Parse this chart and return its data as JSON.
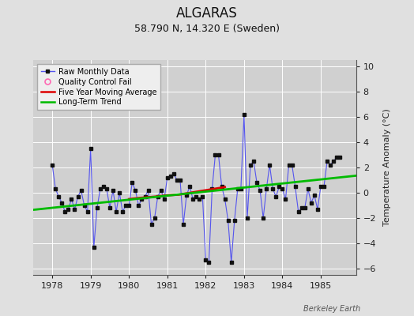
{
  "title": "ALGARAS",
  "subtitle": "58.790 N, 14.320 E (Sweden)",
  "ylabel": "Temperature Anomaly (°C)",
  "xlabel_note": "Berkeley Earth",
  "xlim": [
    1977.5,
    1985.92
  ],
  "ylim": [
    -6.5,
    10.5
  ],
  "yticks": [
    -6,
    -4,
    -2,
    0,
    2,
    4,
    6,
    8,
    10
  ],
  "xticks": [
    1978,
    1979,
    1980,
    1981,
    1982,
    1983,
    1984,
    1985
  ],
  "background_color": "#e0e0e0",
  "plot_bg_color": "#d0d0d0",
  "grid_color": "#ffffff",
  "raw_color": "#5555ee",
  "marker_color": "#111111",
  "moving_avg_color": "#dd0000",
  "trend_color": "#00bb00",
  "raw_monthly_x": [
    1978.0,
    1978.083,
    1978.167,
    1978.25,
    1978.333,
    1978.417,
    1978.5,
    1978.583,
    1978.667,
    1978.75,
    1978.833,
    1978.917,
    1979.0,
    1979.083,
    1979.167,
    1979.25,
    1979.333,
    1979.417,
    1979.5,
    1979.583,
    1979.667,
    1979.75,
    1979.833,
    1979.917,
    1980.0,
    1980.083,
    1980.167,
    1980.25,
    1980.333,
    1980.417,
    1980.5,
    1980.583,
    1980.667,
    1980.75,
    1980.833,
    1980.917,
    1981.0,
    1981.083,
    1981.167,
    1981.25,
    1981.333,
    1981.417,
    1981.5,
    1981.583,
    1981.667,
    1981.75,
    1981.833,
    1981.917,
    1982.0,
    1982.083,
    1982.167,
    1982.25,
    1982.333,
    1982.417,
    1982.5,
    1982.583,
    1982.667,
    1982.75,
    1982.833,
    1982.917,
    1983.0,
    1983.083,
    1983.167,
    1983.25,
    1983.333,
    1983.417,
    1983.5,
    1983.583,
    1983.667,
    1983.75,
    1983.833,
    1983.917,
    1984.0,
    1984.083,
    1984.167,
    1984.25,
    1984.333,
    1984.417,
    1984.5,
    1984.583,
    1984.667,
    1984.75,
    1984.833,
    1984.917,
    1985.0,
    1985.083,
    1985.167,
    1985.25,
    1985.333,
    1985.417,
    1985.5
  ],
  "raw_monthly_y": [
    2.2,
    0.3,
    -0.3,
    -0.8,
    -1.5,
    -1.3,
    -0.5,
    -1.3,
    -0.3,
    0.2,
    -1.0,
    -1.5,
    3.5,
    -4.3,
    -1.2,
    0.3,
    0.5,
    0.3,
    -1.2,
    0.2,
    -1.5,
    0.0,
    -1.5,
    -1.0,
    -1.0,
    0.8,
    0.2,
    -1.0,
    -0.5,
    -0.3,
    0.2,
    -2.5,
    -2.0,
    -0.3,
    0.2,
    -0.5,
    1.2,
    1.3,
    1.5,
    1.0,
    1.0,
    -2.5,
    -0.2,
    0.5,
    -0.5,
    -0.3,
    -0.5,
    -0.3,
    -5.3,
    -5.5,
    0.3,
    3.0,
    3.0,
    0.5,
    -0.5,
    -2.2,
    -5.5,
    -2.2,
    0.3,
    0.3,
    6.2,
    -2.0,
    2.2,
    2.5,
    0.8,
    0.2,
    -2.0,
    0.3,
    2.2,
    0.3,
    -0.3,
    0.5,
    0.3,
    -0.5,
    2.2,
    2.2,
    0.5,
    -1.5,
    -1.2,
    -1.2,
    0.3,
    -0.8,
    -0.2,
    -1.3,
    0.5,
    0.5,
    2.5,
    2.2,
    2.5,
    2.8,
    2.8
  ],
  "moving_avg_x": [
    1980.0,
    1980.3,
    1980.7,
    1981.0,
    1981.3,
    1981.5,
    1981.7,
    1982.0,
    1982.3,
    1982.5
  ],
  "moving_avg_y": [
    -0.5,
    -0.4,
    -0.3,
    -0.2,
    -0.15,
    -0.05,
    0.05,
    0.2,
    0.35,
    0.45
  ],
  "trend_x": [
    1977.5,
    1985.92
  ],
  "trend_y": [
    -1.35,
    1.35
  ],
  "title_fontsize": 12,
  "subtitle_fontsize": 9,
  "tick_labelsize": 8,
  "ylabel_fontsize": 8,
  "legend_fontsize": 7,
  "note_fontsize": 7
}
